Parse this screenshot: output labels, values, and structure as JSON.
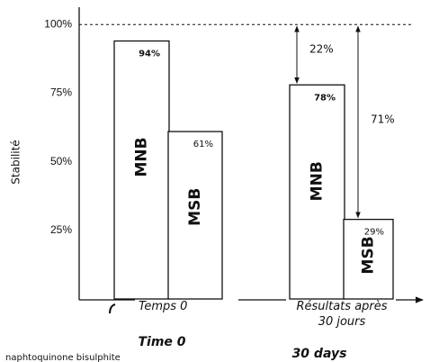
{
  "chart_data": {
    "type": "bar",
    "y_label": "Stabilité",
    "categories": [
      "Temps 0",
      "Résultats après\n30 jours"
    ],
    "series": [
      {
        "name": "MNB",
        "color": "#ffffff",
        "values": [
          94,
          78
        ],
        "value_labels": [
          "94%",
          "78%"
        ]
      },
      {
        "name": "MSB",
        "color": "#ffffff",
        "values": [
          61,
          29
        ],
        "value_labels": [
          "61%",
          "29%"
        ]
      }
    ],
    "ylim": [
      0,
      105
    ],
    "yticks": [
      {
        "value": 25,
        "label": "25%"
      },
      {
        "value": 50,
        "label": "50%"
      },
      {
        "value": 75,
        "label": "75%"
      },
      {
        "value": 100,
        "label": "100%"
      }
    ],
    "reference_line": 100,
    "annotations": [
      "22%",
      "71%"
    ],
    "footer_texts": [
      "Time 0",
      "30 days",
      "naphtoquinone bisulphite"
    ]
  }
}
